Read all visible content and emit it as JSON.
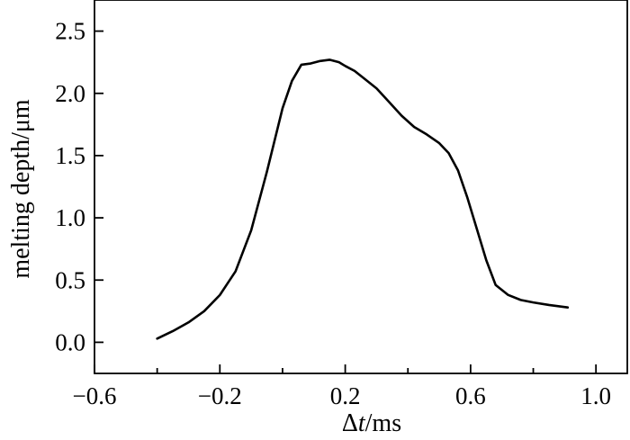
{
  "chart_data": {
    "type": "line",
    "title": "",
    "xlabel_parts": {
      "delta": "Δ",
      "variable": "t",
      "unit": "/ms"
    },
    "ylabel": "melting depth/μm",
    "xlim": [
      -0.6,
      1.1
    ],
    "ylim": [
      -0.25,
      2.75
    ],
    "x_ticks": [
      -0.6,
      -0.2,
      0.2,
      0.6,
      1.0
    ],
    "x_tick_labels": [
      "−0.6",
      "−0.2",
      "0.2",
      "0.6",
      "1.0"
    ],
    "x_minor_ticks": [
      -0.4,
      0.0,
      0.4,
      0.8
    ],
    "y_ticks": [
      0.0,
      0.5,
      1.0,
      1.5,
      2.0,
      2.5
    ],
    "y_tick_labels": [
      "0.0",
      "0.5",
      "1.0",
      "1.5",
      "2.0",
      "2.5"
    ],
    "grid": false,
    "line_color": "#000000",
    "series": [
      {
        "x": [
          -0.4,
          -0.35,
          -0.3,
          -0.25,
          -0.2,
          -0.15,
          -0.1,
          -0.05,
          0.0,
          0.03,
          0.06,
          0.09,
          0.12,
          0.15,
          0.18,
          0.2,
          0.23,
          0.26,
          0.3,
          0.34,
          0.38,
          0.42,
          0.46,
          0.5,
          0.53,
          0.56,
          0.59,
          0.62,
          0.65,
          0.68,
          0.72,
          0.76,
          0.8,
          0.85,
          0.91
        ],
        "y": [
          0.03,
          0.09,
          0.16,
          0.25,
          0.38,
          0.57,
          0.9,
          1.37,
          1.88,
          2.1,
          2.23,
          2.24,
          2.26,
          2.27,
          2.25,
          2.22,
          2.18,
          2.12,
          2.04,
          1.93,
          1.82,
          1.73,
          1.67,
          1.6,
          1.52,
          1.38,
          1.16,
          0.91,
          0.66,
          0.46,
          0.38,
          0.34,
          0.32,
          0.3,
          0.28
        ]
      }
    ]
  }
}
